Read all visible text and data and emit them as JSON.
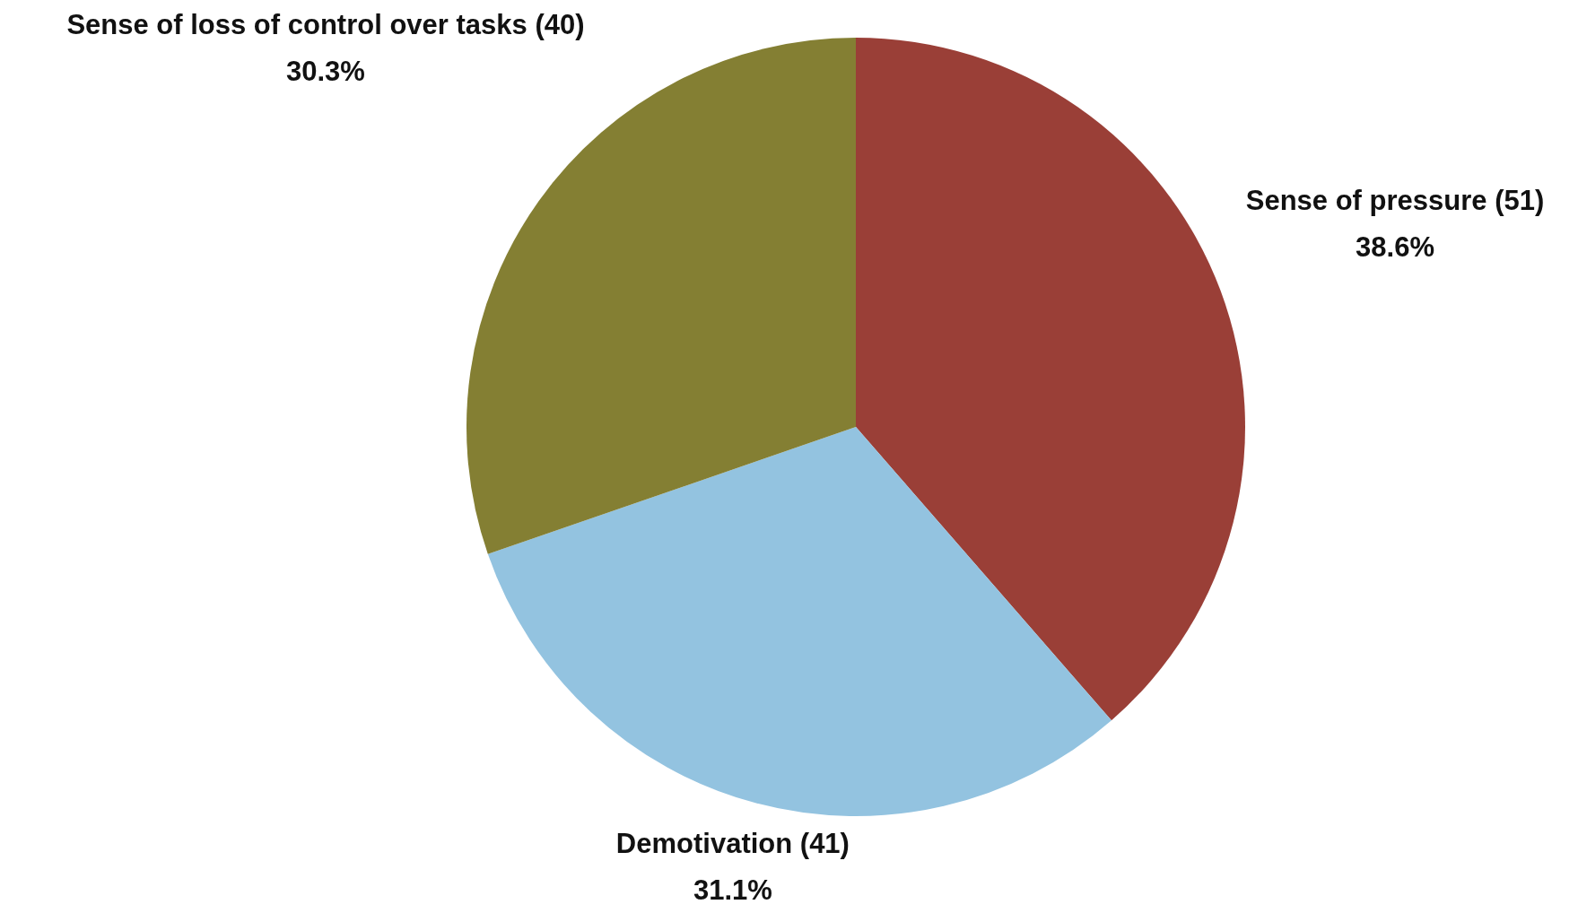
{
  "chart_data": {
    "type": "pie",
    "categories": [
      "Sense of pressure (51)",
      "Demotivation (41)",
      "Sense of loss of control over tasks (40)"
    ],
    "values": [
      38.6,
      31.1,
      30.3
    ],
    "colors": [
      "#9a3f37",
      "#93c3e0",
      "#847f33"
    ],
    "value_labels": [
      "38.6%",
      "31.1%",
      "30.3%"
    ],
    "legend": false
  }
}
